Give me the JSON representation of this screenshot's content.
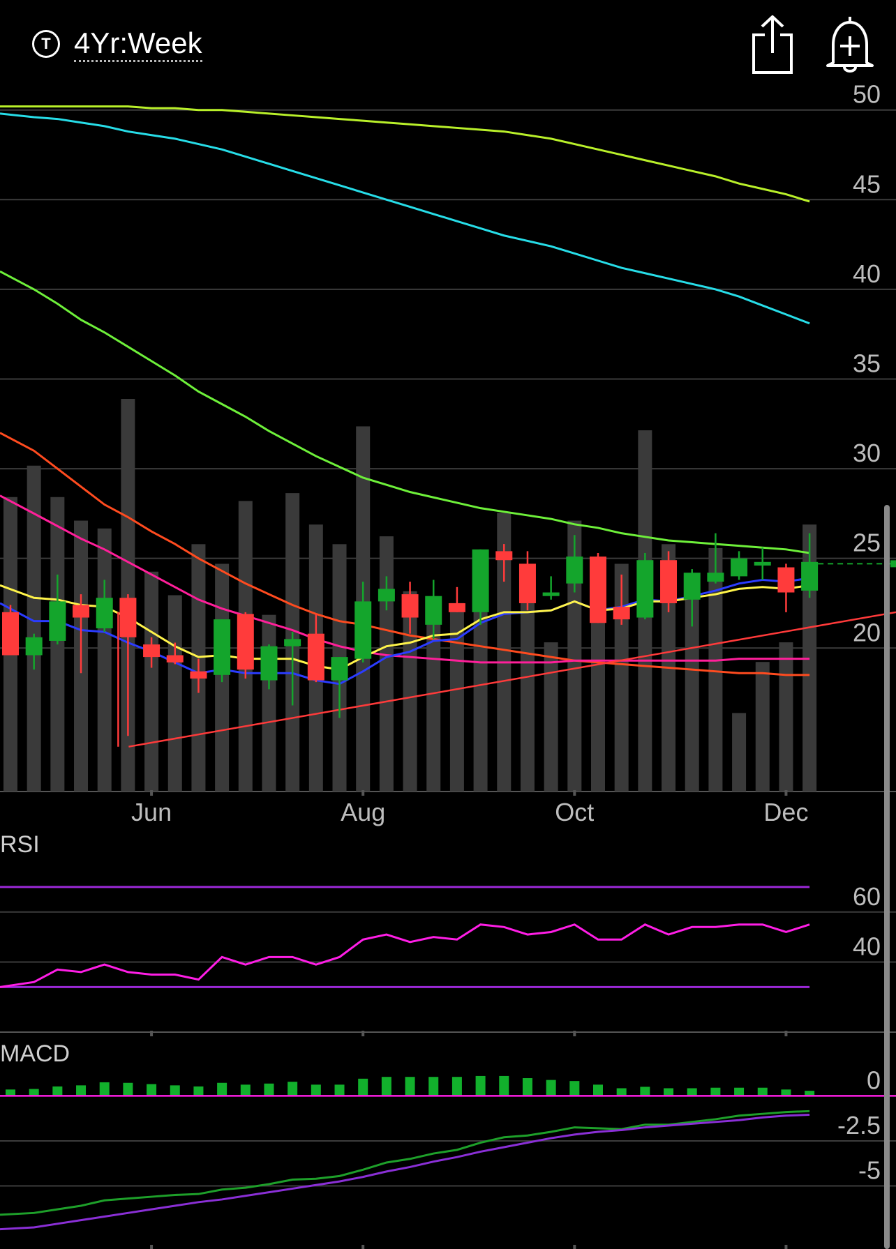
{
  "header": {
    "timeframe_icon": "T",
    "timeframe_label": "4Yr:Week",
    "share_icon": "share-icon",
    "alert_icon": "add-alert-bell-icon"
  },
  "colors": {
    "background": "#000000",
    "up": "#14a52c",
    "down": "#ff3b3b",
    "volume": "#3a3a3a",
    "grid": "#3c3c3c",
    "rsi": "#ff1ee6",
    "rsi_bands": "#9a28d6",
    "macd_hist": "#12b02c",
    "macd_line": "#1ea02a",
    "macd_signal": "#8a2fd6"
  },
  "chart_data": [
    {
      "type": "candlestick",
      "y_ticks": [
        "50",
        "45",
        "40",
        "35",
        "30",
        "25",
        "20"
      ],
      "ylim": [
        12,
        51
      ],
      "x_ticks": [
        "Jun",
        "Aug",
        "Oct",
        "Dec"
      ],
      "x_tick_index": [
        6,
        15,
        24,
        33
      ],
      "last_price_marker": 24.7,
      "candles": [
        {
          "o": 22.0,
          "h": 22.4,
          "l": 19.7,
          "c": 19.6
        },
        {
          "o": 19.6,
          "h": 20.8,
          "l": 18.8,
          "c": 20.6
        },
        {
          "o": 20.4,
          "h": 24.1,
          "l": 20.2,
          "c": 22.6
        },
        {
          "o": 22.4,
          "h": 23.0,
          "l": 18.6,
          "c": 21.7
        },
        {
          "o": 21.1,
          "h": 23.8,
          "l": 20.9,
          "c": 22.8
        },
        {
          "o": 22.8,
          "h": 23.0,
          "l": 15.1,
          "c": 20.6
        },
        {
          "o": 20.2,
          "h": 20.6,
          "l": 18.9,
          "c": 19.5
        },
        {
          "o": 19.6,
          "h": 20.3,
          "l": 19.1,
          "c": 19.2
        },
        {
          "o": 18.7,
          "h": 19.4,
          "l": 17.5,
          "c": 18.3
        },
        {
          "o": 18.5,
          "h": 21.6,
          "l": 18.1,
          "c": 21.6
        },
        {
          "o": 21.9,
          "h": 22.0,
          "l": 18.3,
          "c": 18.8
        },
        {
          "o": 18.2,
          "h": 20.2,
          "l": 17.7,
          "c": 20.1
        },
        {
          "o": 20.1,
          "h": 20.9,
          "l": 16.8,
          "c": 20.5
        },
        {
          "o": 20.8,
          "h": 21.9,
          "l": 18.1,
          "c": 18.2
        },
        {
          "o": 18.2,
          "h": 19.5,
          "l": 16.1,
          "c": 19.5
        },
        {
          "o": 19.4,
          "h": 23.7,
          "l": 19.2,
          "c": 22.6
        },
        {
          "o": 22.6,
          "h": 24.0,
          "l": 22.1,
          "c": 23.3
        },
        {
          "o": 23.0,
          "h": 23.7,
          "l": 20.8,
          "c": 21.7
        },
        {
          "o": 21.3,
          "h": 23.8,
          "l": 20.5,
          "c": 22.9
        },
        {
          "o": 22.5,
          "h": 23.4,
          "l": 22.0,
          "c": 22.0
        },
        {
          "o": 22.0,
          "h": 25.5,
          "l": 21.3,
          "c": 25.5
        },
        {
          "o": 25.4,
          "h": 25.8,
          "l": 23.7,
          "c": 24.9
        },
        {
          "o": 24.7,
          "h": 25.4,
          "l": 22.1,
          "c": 22.5
        },
        {
          "o": 22.9,
          "h": 24.0,
          "l": 22.7,
          "c": 23.1
        },
        {
          "o": 23.6,
          "h": 26.3,
          "l": 23.1,
          "c": 25.1
        },
        {
          "o": 25.1,
          "h": 25.3,
          "l": 21.4,
          "c": 21.4
        },
        {
          "o": 22.3,
          "h": 24.1,
          "l": 21.3,
          "c": 21.6
        },
        {
          "o": 21.7,
          "h": 25.3,
          "l": 21.6,
          "c": 24.9
        },
        {
          "o": 24.9,
          "h": 25.4,
          "l": 22.0,
          "c": 22.5
        },
        {
          "o": 22.7,
          "h": 24.4,
          "l": 21.2,
          "c": 24.2
        },
        {
          "o": 23.7,
          "h": 26.4,
          "l": 23.6,
          "c": 24.2
        },
        {
          "o": 24.0,
          "h": 25.4,
          "l": 23.8,
          "c": 25.0
        },
        {
          "o": 24.6,
          "h": 25.6,
          "l": 23.8,
          "c": 24.8
        },
        {
          "o": 24.5,
          "h": 24.7,
          "l": 22.0,
          "c": 23.1
        },
        {
          "o": 23.2,
          "h": 26.4,
          "l": 22.8,
          "c": 24.8
        }
      ],
      "volume": [
        0.75,
        0.83,
        0.75,
        0.69,
        0.67,
        1.0,
        0.56,
        0.5,
        0.63,
        0.58,
        0.74,
        0.45,
        0.76,
        0.68,
        0.63,
        0.93,
        0.65,
        0.51,
        0.49,
        0.48,
        0.48,
        0.71,
        0.5,
        0.38,
        0.69,
        0.56,
        0.58,
        0.92,
        0.63,
        0.51,
        0.62,
        0.2,
        0.33,
        0.38,
        0.68
      ],
      "sma_lime": [
        50.2,
        50.2,
        50.2,
        50.2,
        50.2,
        50.2,
        50.1,
        50.1,
        50.0,
        50.0,
        49.9,
        49.8,
        49.7,
        49.6,
        49.5,
        49.4,
        49.3,
        49.2,
        49.1,
        49.0,
        48.9,
        48.8,
        48.6,
        48.4,
        48.1,
        47.8,
        47.5,
        47.2,
        46.9,
        46.6,
        46.3,
        45.9,
        45.6,
        45.3,
        44.9
      ],
      "sma_cyan": [
        49.8,
        49.6,
        49.5,
        49.3,
        49.1,
        48.8,
        48.6,
        48.4,
        48.1,
        47.8,
        47.4,
        47.0,
        46.6,
        46.2,
        45.8,
        45.4,
        45.0,
        44.6,
        44.2,
        43.8,
        43.4,
        43.0,
        42.7,
        42.4,
        42.0,
        41.6,
        41.2,
        40.9,
        40.6,
        40.3,
        40.0,
        39.6,
        39.1,
        38.6,
        38.1
      ],
      "sma_green": [
        41.0,
        40.0,
        39.2,
        38.3,
        37.6,
        36.8,
        36.0,
        35.2,
        34.3,
        33.6,
        32.9,
        32.1,
        31.4,
        30.7,
        30.1,
        29.5,
        29.1,
        28.7,
        28.4,
        28.1,
        27.8,
        27.6,
        27.4,
        27.2,
        26.9,
        26.7,
        26.4,
        26.2,
        26.0,
        25.9,
        25.8,
        25.7,
        25.6,
        25.5,
        25.3
      ],
      "sma_orange": [
        32.0,
        31.0,
        30.0,
        29.0,
        28.0,
        27.3,
        26.5,
        25.8,
        25.0,
        24.3,
        23.6,
        23.0,
        22.4,
        21.9,
        21.5,
        21.3,
        21.0,
        20.7,
        20.5,
        20.3,
        20.1,
        19.9,
        19.7,
        19.5,
        19.3,
        19.2,
        19.1,
        19.0,
        18.9,
        18.8,
        18.7,
        18.6,
        18.6,
        18.5,
        18.5
      ],
      "sma_magenta": [
        28.5,
        27.5,
        26.8,
        26.1,
        25.5,
        24.8,
        24.1,
        23.4,
        22.7,
        22.2,
        21.8,
        21.4,
        21.0,
        20.5,
        20.1,
        19.8,
        19.6,
        19.5,
        19.4,
        19.3,
        19.2,
        19.2,
        19.2,
        19.2,
        19.3,
        19.3,
        19.3,
        19.3,
        19.3,
        19.3,
        19.3,
        19.4,
        19.4,
        19.4,
        19.4
      ],
      "ema_blue": [
        22.5,
        21.5,
        21.5,
        21.0,
        20.9,
        20.3,
        19.8,
        19.2,
        18.6,
        18.8,
        18.6,
        18.6,
        18.6,
        18.2,
        18.0,
        18.7,
        19.5,
        19.8,
        20.4,
        20.5,
        21.4,
        21.9,
        22.0,
        22.1,
        22.6,
        22.1,
        22.3,
        22.7,
        22.6,
        22.9,
        23.2,
        23.6,
        23.8,
        23.7,
        23.9
      ],
      "ema_yellow": [
        23.5,
        22.8,
        22.7,
        22.4,
        22.3,
        21.7,
        20.9,
        20.1,
        19.5,
        19.6,
        19.4,
        19.4,
        19.4,
        19.0,
        18.8,
        19.5,
        20.1,
        20.3,
        20.7,
        20.8,
        21.6,
        22.0,
        22.0,
        22.1,
        22.6,
        22.1,
        22.2,
        22.6,
        22.6,
        22.8,
        23.0,
        23.3,
        23.4,
        23.3,
        23.5
      ],
      "trendline": [
        [
          5,
          14.5
        ],
        [
          37,
          22.0
        ]
      ],
      "trendline_stub": [
        [
          5,
          14.5
        ],
        [
          5,
          22.0
        ]
      ]
    },
    {
      "type": "line",
      "title": "RSI",
      "y_ticks": [
        "60",
        "40"
      ],
      "ylim": [
        12,
        80
      ],
      "bands": [
        70,
        30
      ],
      "values": [
        30,
        32,
        37,
        36,
        39,
        36,
        35,
        35,
        33,
        42,
        39,
        42,
        42,
        39,
        42,
        49,
        51,
        48,
        50,
        49,
        55,
        54,
        51,
        52,
        55,
        49,
        49,
        55,
        51,
        54,
        54,
        55,
        55,
        52,
        55
      ]
    },
    {
      "type": "bar",
      "title": "MACD",
      "y_ticks": [
        "0",
        "-2.5",
        "-5"
      ],
      "ylim": [
        -8.5,
        1.6
      ],
      "histogram": [
        0.35,
        0.38,
        0.52,
        0.58,
        0.75,
        0.72,
        0.65,
        0.58,
        0.52,
        0.72,
        0.62,
        0.68,
        0.78,
        0.62,
        0.62,
        0.95,
        1.05,
        1.05,
        1.05,
        1.05,
        1.1,
        1.1,
        0.98,
        0.88,
        0.82,
        0.62,
        0.42,
        0.5,
        0.42,
        0.42,
        0.45,
        0.45,
        0.45,
        0.35,
        0.28
      ],
      "macd": [
        -6.6,
        -6.5,
        -6.3,
        -6.1,
        -5.8,
        -5.7,
        -5.6,
        -5.5,
        -5.45,
        -5.2,
        -5.1,
        -4.9,
        -4.65,
        -4.6,
        -4.45,
        -4.1,
        -3.7,
        -3.5,
        -3.2,
        -3.0,
        -2.6,
        -2.3,
        -2.2,
        -2.0,
        -1.75,
        -1.8,
        -1.85,
        -1.6,
        -1.6,
        -1.45,
        -1.3,
        -1.1,
        -1.0,
        -0.9,
        -0.85
      ],
      "signal": [
        -7.4,
        -7.3,
        -7.1,
        -6.9,
        -6.7,
        -6.5,
        -6.3,
        -6.1,
        -5.9,
        -5.75,
        -5.55,
        -5.35,
        -5.15,
        -4.95,
        -4.75,
        -4.5,
        -4.2,
        -3.95,
        -3.65,
        -3.4,
        -3.1,
        -2.85,
        -2.6,
        -2.35,
        -2.15,
        -2.0,
        -1.9,
        -1.75,
        -1.65,
        -1.55,
        -1.45,
        -1.35,
        -1.2,
        -1.1,
        -1.05
      ]
    }
  ]
}
